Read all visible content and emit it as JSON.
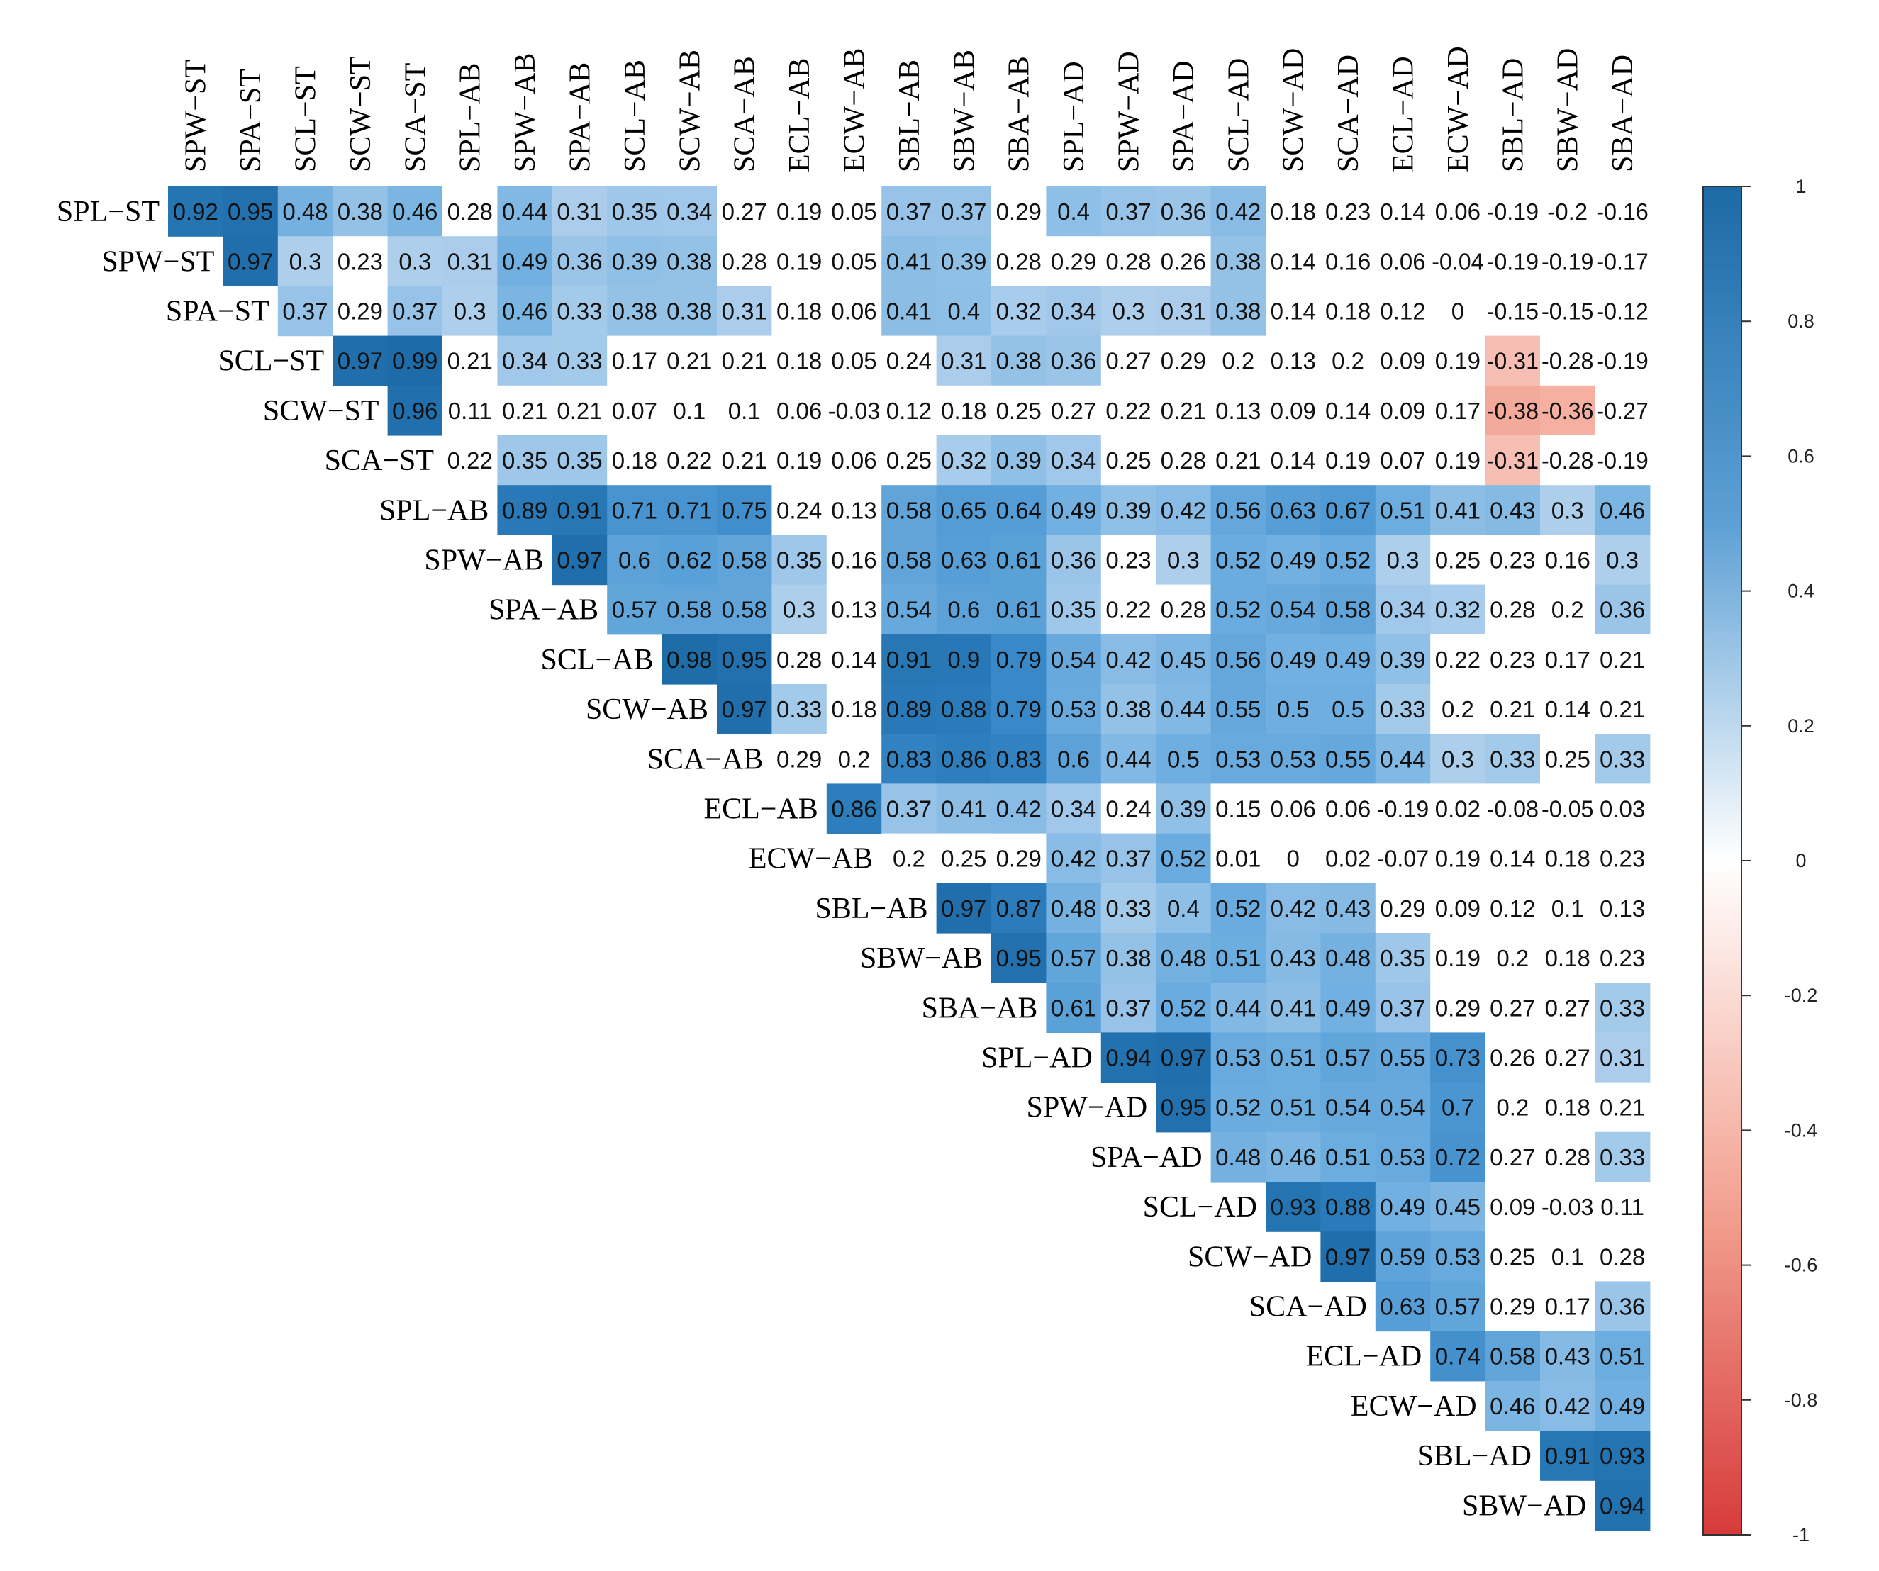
{
  "chart_data": {
    "type": "heatmap",
    "subtype": "upper-triangular correlation matrix",
    "row_labels": [
      "SPL−ST",
      "SPW−ST",
      "SPA−ST",
      "SCL−ST",
      "SCW−ST",
      "SCA−ST",
      "SPL−AB",
      "SPW−AB",
      "SPA−AB",
      "SCL−AB",
      "SCW−AB",
      "SCA−AB",
      "ECL−AB",
      "ECW−AB",
      "SBL−AB",
      "SBW−AB",
      "SBA−AB",
      "SPL−AD",
      "SPW−AD",
      "SPA−AD",
      "SCL−AD",
      "SCW−AD",
      "SCA−AD",
      "ECL−AD",
      "ECW−AD",
      "SBL−AD",
      "SBW−AD"
    ],
    "column_labels": [
      "SPW−ST",
      "SPA−ST",
      "SCL−ST",
      "SCW−ST",
      "SCA−ST",
      "SPL−AB",
      "SPW−AB",
      "SPA−AB",
      "SCL−AB",
      "SCW−AB",
      "SCA−AB",
      "ECL−AB",
      "ECW−AB",
      "SBL−AB",
      "SBW−AB",
      "SBA−AB",
      "SPL−AD",
      "SPW−AD",
      "SPA−AD",
      "SCL−AD",
      "SCW−AD",
      "SCA−AD",
      "ECL−AD",
      "ECW−AD",
      "SBL−AD",
      "SBW−AD",
      "SBA−AD"
    ],
    "rows": [
      {
        "label": "SPL−ST",
        "values": [
          "0.92",
          "0.95",
          "0.48",
          "0.38",
          "0.46",
          "0.28",
          "0.44",
          "0.31",
          "0.35",
          "0.34",
          "0.27",
          "0.19",
          "0.05",
          "0.37",
          "0.37",
          "0.29",
          "0.4",
          "0.37",
          "0.36",
          "0.42",
          "0.18",
          "0.23",
          "0.14",
          "0.06",
          "-0.19",
          "-0.2",
          "-0.16"
        ]
      },
      {
        "label": "SPW−ST",
        "values": [
          "0.97",
          "0.3",
          "0.23",
          "0.3",
          "0.31",
          "0.49",
          "0.36",
          "0.39",
          "0.38",
          "0.28",
          "0.19",
          "0.05",
          "0.41",
          "0.39",
          "0.28",
          "0.29",
          "0.28",
          "0.26",
          "0.38",
          "0.14",
          "0.16",
          "0.06",
          "-0.04",
          "-0.19",
          "-0.19",
          "-0.17"
        ]
      },
      {
        "label": "SPA−ST",
        "values": [
          "0.37",
          "0.29",
          "0.37",
          "0.3",
          "0.46",
          "0.33",
          "0.38",
          "0.38",
          "0.31",
          "0.18",
          "0.06",
          "0.41",
          "0.4",
          "0.32",
          "0.34",
          "0.3",
          "0.31",
          "0.38",
          "0.14",
          "0.18",
          "0.12",
          "0",
          "-0.15",
          "-0.15",
          "-0.12"
        ]
      },
      {
        "label": "SCL−ST",
        "values": [
          "0.97",
          "0.99",
          "0.21",
          "0.34",
          "0.33",
          "0.17",
          "0.21",
          "0.21",
          "0.18",
          "0.05",
          "0.24",
          "0.31",
          "0.38",
          "0.36",
          "0.27",
          "0.29",
          "0.2",
          "0.13",
          "0.2",
          "0.09",
          "0.19",
          "-0.31",
          "-0.28",
          "-0.19"
        ]
      },
      {
        "label": "SCW−ST",
        "values": [
          "0.96",
          "0.11",
          "0.21",
          "0.21",
          "0.07",
          "0.1",
          "0.1",
          "0.06",
          "-0.03",
          "0.12",
          "0.18",
          "0.25",
          "0.27",
          "0.22",
          "0.21",
          "0.13",
          "0.09",
          "0.14",
          "0.09",
          "0.17",
          "-0.38",
          "-0.36",
          "-0.27"
        ]
      },
      {
        "label": "SCA−ST",
        "values": [
          "0.22",
          "0.35",
          "0.35",
          "0.18",
          "0.22",
          "0.21",
          "0.19",
          "0.06",
          "0.25",
          "0.32",
          "0.39",
          "0.34",
          "0.25",
          "0.28",
          "0.21",
          "0.14",
          "0.19",
          "0.07",
          "0.19",
          "-0.31",
          "-0.28",
          "-0.19"
        ]
      },
      {
        "label": "SPL−AB",
        "values": [
          "0.89",
          "0.91",
          "0.71",
          "0.71",
          "0.75",
          "0.24",
          "0.13",
          "0.58",
          "0.65",
          "0.64",
          "0.49",
          "0.39",
          "0.42",
          "0.56",
          "0.63",
          "0.67",
          "0.51",
          "0.41",
          "0.43",
          "0.3",
          "0.46"
        ]
      },
      {
        "label": "SPW−AB",
        "values": [
          "0.97",
          "0.6",
          "0.62",
          "0.58",
          "0.35",
          "0.16",
          "0.58",
          "0.63",
          "0.61",
          "0.36",
          "0.23",
          "0.3",
          "0.52",
          "0.49",
          "0.52",
          "0.3",
          "0.25",
          "0.23",
          "0.16",
          "0.3"
        ]
      },
      {
        "label": "SPA−AB",
        "values": [
          "0.57",
          "0.58",
          "0.58",
          "0.3",
          "0.13",
          "0.54",
          "0.6",
          "0.61",
          "0.35",
          "0.22",
          "0.28",
          "0.52",
          "0.54",
          "0.58",
          "0.34",
          "0.32",
          "0.28",
          "0.2",
          "0.36"
        ]
      },
      {
        "label": "SCL−AB",
        "values": [
          "0.98",
          "0.95",
          "0.28",
          "0.14",
          "0.91",
          "0.9",
          "0.79",
          "0.54",
          "0.42",
          "0.45",
          "0.56",
          "0.49",
          "0.49",
          "0.39",
          "0.22",
          "0.23",
          "0.17",
          "0.21"
        ]
      },
      {
        "label": "SCW−AB",
        "values": [
          "0.97",
          "0.33",
          "0.18",
          "0.89",
          "0.88",
          "0.79",
          "0.53",
          "0.38",
          "0.44",
          "0.55",
          "0.5",
          "0.5",
          "0.33",
          "0.2",
          "0.21",
          "0.14",
          "0.21"
        ]
      },
      {
        "label": "SCA−AB",
        "values": [
          "0.29",
          "0.2",
          "0.83",
          "0.86",
          "0.83",
          "0.6",
          "0.44",
          "0.5",
          "0.53",
          "0.53",
          "0.55",
          "0.44",
          "0.3",
          "0.33",
          "0.25",
          "0.33"
        ]
      },
      {
        "label": "ECL−AB",
        "values": [
          "0.86",
          "0.37",
          "0.41",
          "0.42",
          "0.34",
          "0.24",
          "0.39",
          "0.15",
          "0.06",
          "0.06",
          "-0.19",
          "0.02",
          "-0.08",
          "-0.05",
          "0.03"
        ]
      },
      {
        "label": "ECW−AB",
        "values": [
          "0.2",
          "0.25",
          "0.29",
          "0.42",
          "0.37",
          "0.52",
          "0.01",
          "0",
          "0.02",
          "-0.07",
          "0.19",
          "0.14",
          "0.18",
          "0.23"
        ]
      },
      {
        "label": "SBL−AB",
        "values": [
          "0.97",
          "0.87",
          "0.48",
          "0.33",
          "0.4",
          "0.52",
          "0.42",
          "0.43",
          "0.29",
          "0.09",
          "0.12",
          "0.1",
          "0.13"
        ]
      },
      {
        "label": "SBW−AB",
        "values": [
          "0.95",
          "0.57",
          "0.38",
          "0.48",
          "0.51",
          "0.43",
          "0.48",
          "0.35",
          "0.19",
          "0.2",
          "0.18",
          "0.23"
        ]
      },
      {
        "label": "SBA−AB",
        "values": [
          "0.61",
          "0.37",
          "0.52",
          "0.44",
          "0.41",
          "0.49",
          "0.37",
          "0.29",
          "0.27",
          "0.27",
          "0.33"
        ]
      },
      {
        "label": "SPL−AD",
        "values": [
          "0.94",
          "0.97",
          "0.53",
          "0.51",
          "0.57",
          "0.55",
          "0.73",
          "0.26",
          "0.27",
          "0.31"
        ]
      },
      {
        "label": "SPW−AD",
        "values": [
          "0.95",
          "0.52",
          "0.51",
          "0.54",
          "0.54",
          "0.7",
          "0.2",
          "0.18",
          "0.21"
        ]
      },
      {
        "label": "SPA−AD",
        "values": [
          "0.48",
          "0.46",
          "0.51",
          "0.53",
          "0.72",
          "0.27",
          "0.28",
          "0.33"
        ]
      },
      {
        "label": "SCL−AD",
        "values": [
          "0.93",
          "0.88",
          "0.49",
          "0.45",
          "0.09",
          "-0.03",
          "0.11"
        ]
      },
      {
        "label": "SCW−AD",
        "values": [
          "0.97",
          "0.59",
          "0.53",
          "0.25",
          "0.1",
          "0.28"
        ]
      },
      {
        "label": "SCA−AD",
        "values": [
          "0.63",
          "0.57",
          "0.29",
          "0.17",
          "0.36"
        ]
      },
      {
        "label": "ECL−AD",
        "values": [
          "0.74",
          "0.58",
          "0.43",
          "0.51"
        ]
      },
      {
        "label": "ECW−AD",
        "values": [
          "0.46",
          "0.42",
          "0.49"
        ]
      },
      {
        "label": "SBL−AD",
        "values": [
          "0.91",
          "0.93"
        ]
      },
      {
        "label": "SBW−AD",
        "values": [
          "0.94"
        ]
      }
    ],
    "color_scale": {
      "range": [
        -1,
        1
      ],
      "ticks": [
        "1",
        "0.8",
        "0.6",
        "0.4",
        "0.2",
        "0",
        "-0.2",
        "-0.4",
        "-0.6",
        "-0.8",
        "-1"
      ],
      "colors": {
        "negative": "#d73b3b",
        "zero": "#ffffff",
        "positive": "#1c6aa6"
      }
    }
  }
}
